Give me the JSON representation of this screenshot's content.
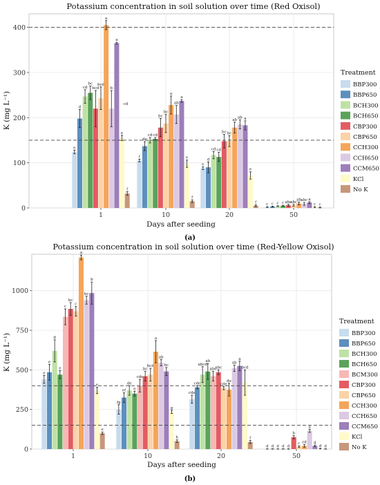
{
  "legend_title": "Treatment",
  "colors": {
    "BBP300": "#c7dced",
    "BBP650": "#5d8fbe",
    "BCH300": "#bee2a5",
    "BCH650": "#5ba25a",
    "BCM300": "#f6b8b4",
    "CBP300": "#e35c62",
    "CBP650": "#fbd3a7",
    "CCH300": "#f5a55a",
    "CCH650": "#dcc9e3",
    "CCM650": "#9d7fba",
    "KCl": "#fffac8",
    "No K": "#c7977b"
  },
  "panels": [
    {
      "title": "Potassium concentration in soil solution over time (Red Oxisol)",
      "caption": "(a)",
      "legend": [
        "BBP300",
        "BBP650",
        "BCH300",
        "BCH650",
        "CBP300",
        "CBP650",
        "CCH300",
        "CCH650",
        "CCM650",
        "KCl",
        "No K"
      ]
    },
    {
      "title": "Potassium concentration in soil solution over time (Red-Yellow Oxisol)",
      "caption": "(b)",
      "legend": [
        "BBP300",
        "BBP650",
        "BCH300",
        "BCH650",
        "BCM300",
        "CBP300",
        "CBP650",
        "CCH300",
        "CCH650",
        "CCM650",
        "KCl",
        "No K"
      ]
    }
  ],
  "chart_data": [
    {
      "type": "bar",
      "title": "Potassium concentration in soil solution over time (Red Oxisol)",
      "xlabel": "Days after seeding",
      "ylabel": "K (mg L⁻¹)",
      "categories": [
        "1",
        "10",
        "20",
        "50"
      ],
      "ylim": [
        0,
        430
      ],
      "yticks": [
        0,
        100,
        200,
        300,
        400
      ],
      "reference_lines": [
        150,
        400
      ],
      "grid": true,
      "legend_position": "right",
      "series": [
        {
          "name": "BBP300",
          "values": [
            124,
            105,
            88,
            2
          ],
          "errors": [
            4,
            3,
            3,
            1
          ],
          "letters": [
            "e",
            "f",
            "e",
            "c"
          ]
        },
        {
          "name": "BBP650",
          "values": [
            198,
            137,
            90,
            3
          ],
          "errors": [
            20,
            10,
            12,
            1
          ],
          "letters": [
            "d",
            "de",
            "d",
            "c"
          ]
        },
        {
          "name": "BCH300",
          "values": [
            247,
            150,
            117,
            4
          ],
          "errors": [
            15,
            6,
            8,
            1
          ],
          "letters": [
            "cd",
            "cd",
            "cd",
            "c"
          ]
        },
        {
          "name": "BCH650",
          "values": [
            255,
            153,
            113,
            5
          ],
          "errors": [
            15,
            3,
            10,
            1
          ],
          "letters": [
            "bc",
            "cd",
            "cd",
            "c"
          ]
        },
        {
          "name": "CBP300",
          "values": [
            220,
            178,
            148,
            6
          ],
          "errors": [
            40,
            20,
            15,
            2
          ],
          "letters": [
            "bcd",
            "bc",
            "bc",
            "abc"
          ]
        },
        {
          "name": "CBP650",
          "values": [
            243,
            187,
            148,
            6
          ],
          "errors": [
            25,
            20,
            12,
            2
          ],
          "letters": [
            "bcd",
            "bc",
            "bc",
            "abc"
          ]
        },
        {
          "name": "CCH300",
          "values": [
            405,
            228,
            178,
            10
          ],
          "errors": [
            10,
            20,
            12,
            3
          ],
          "letters": [
            "a",
            "a",
            "ab",
            "ab"
          ]
        },
        {
          "name": "CCH650",
          "values": [
            220,
            207,
            185,
            9
          ],
          "errors": [
            40,
            20,
            10,
            3
          ],
          "letters": [
            "b",
            "ab",
            "ab",
            "abc"
          ]
        },
        {
          "name": "CCM650",
          "values": [
            365,
            237,
            183,
            12
          ],
          "errors": [
            2,
            3,
            10,
            2
          ],
          "letters": [
            "a",
            "a",
            "a",
            "a"
          ]
        },
        {
          "name": "KCl",
          "values": [
            155,
            98,
            72,
            2
          ],
          "errors": [
            6,
            8,
            8,
            1
          ],
          "letters": [
            "e",
            "e",
            "e",
            "c"
          ]
        },
        {
          "name": "No K",
          "values": [
            32,
            15,
            5,
            1
          ],
          "errors": [
            4,
            3,
            2,
            1
          ],
          "letters": [
            "f",
            "f",
            "f",
            "c"
          ]
        }
      ],
      "cd_label": {
        "text": "cd",
        "value": 225
      }
    },
    {
      "type": "bar",
      "title": "Potassium concentration in soil solution over time (Red-Yellow Oxisol)",
      "xlabel": "Days after seeding",
      "ylabel": "K (mg L⁻¹)",
      "categories": [
        "1",
        "10",
        "20",
        "50"
      ],
      "ylim": [
        0,
        1230
      ],
      "yticks": [
        0,
        250,
        500,
        750,
        1000
      ],
      "reference_lines": [
        150,
        400
      ],
      "grid": true,
      "legend_position": "right",
      "series": [
        {
          "name": "BBP300",
          "values": [
            440,
            250,
            315,
            1
          ],
          "errors": [
            25,
            30,
            25,
            1
          ],
          "letters": [
            "e",
            "fg",
            "cde",
            "d"
          ]
        },
        {
          "name": "BBP650",
          "values": [
            485,
            325,
            390,
            1
          ],
          "errors": [
            50,
            30,
            10,
            1
          ],
          "letters": [
            "e",
            "ef",
            "cde",
            "d"
          ]
        },
        {
          "name": "BCH300",
          "values": [
            620,
            370,
            470,
            1
          ],
          "errors": [
            70,
            30,
            50,
            1
          ],
          "letters": [
            "d",
            "de",
            "abcd",
            "d"
          ]
        },
        {
          "name": "BCH650",
          "values": [
            470,
            350,
            490,
            1
          ],
          "errors": [
            25,
            15,
            50,
            1
          ],
          "letters": [
            "e",
            "e",
            "ab",
            "d"
          ]
        },
        {
          "name": "BCM300",
          "values": [
            835,
            400,
            460,
            1
          ],
          "errors": [
            50,
            40,
            30,
            1
          ],
          "letters": [
            "c",
            "cde",
            "abc",
            "d"
          ]
        },
        {
          "name": "CBP300",
          "values": [
            885,
            460,
            485,
            75
          ],
          "errors": [
            40,
            30,
            15,
            10
          ],
          "letters": [
            "bc",
            "bc",
            "abc",
            "b"
          ]
        },
        {
          "name": "CBP650",
          "values": [
            870,
            470,
            385,
            15
          ],
          "errors": [
            30,
            40,
            10,
            5
          ],
          "letters": [
            "c",
            "bcd",
            "cde",
            "c"
          ]
        },
        {
          "name": "CCH300",
          "values": [
            1210,
            615,
            375,
            20
          ],
          "errors": [
            15,
            70,
            40,
            8
          ],
          "letters": [
            "a",
            "a",
            "de",
            "cd"
          ]
        },
        {
          "name": "CCH650",
          "values": [
            940,
            545,
            510,
            115
          ],
          "errors": [
            25,
            20,
            20,
            10
          ],
          "letters": [
            "bc",
            "ab",
            "ab",
            "a"
          ]
        },
        {
          "name": "CCM650",
          "values": [
            985,
            490,
            525,
            20
          ],
          "errors": [
            70,
            25,
            30,
            5
          ],
          "letters": [
            "b",
            "bc",
            "a",
            "d"
          ]
        },
        {
          "name": "KCl",
          "values": [
            370,
            235,
            420,
            3
          ],
          "errors": [
            20,
            10,
            80,
            2
          ],
          "letters": [
            "e",
            "g",
            "bcd",
            "d"
          ]
        },
        {
          "name": "No K",
          "values": [
            100,
            50,
            45,
            1
          ],
          "errors": [
            8,
            8,
            10,
            1
          ],
          "letters": [
            "e",
            "h",
            "f",
            "d"
          ]
        }
      ]
    }
  ]
}
